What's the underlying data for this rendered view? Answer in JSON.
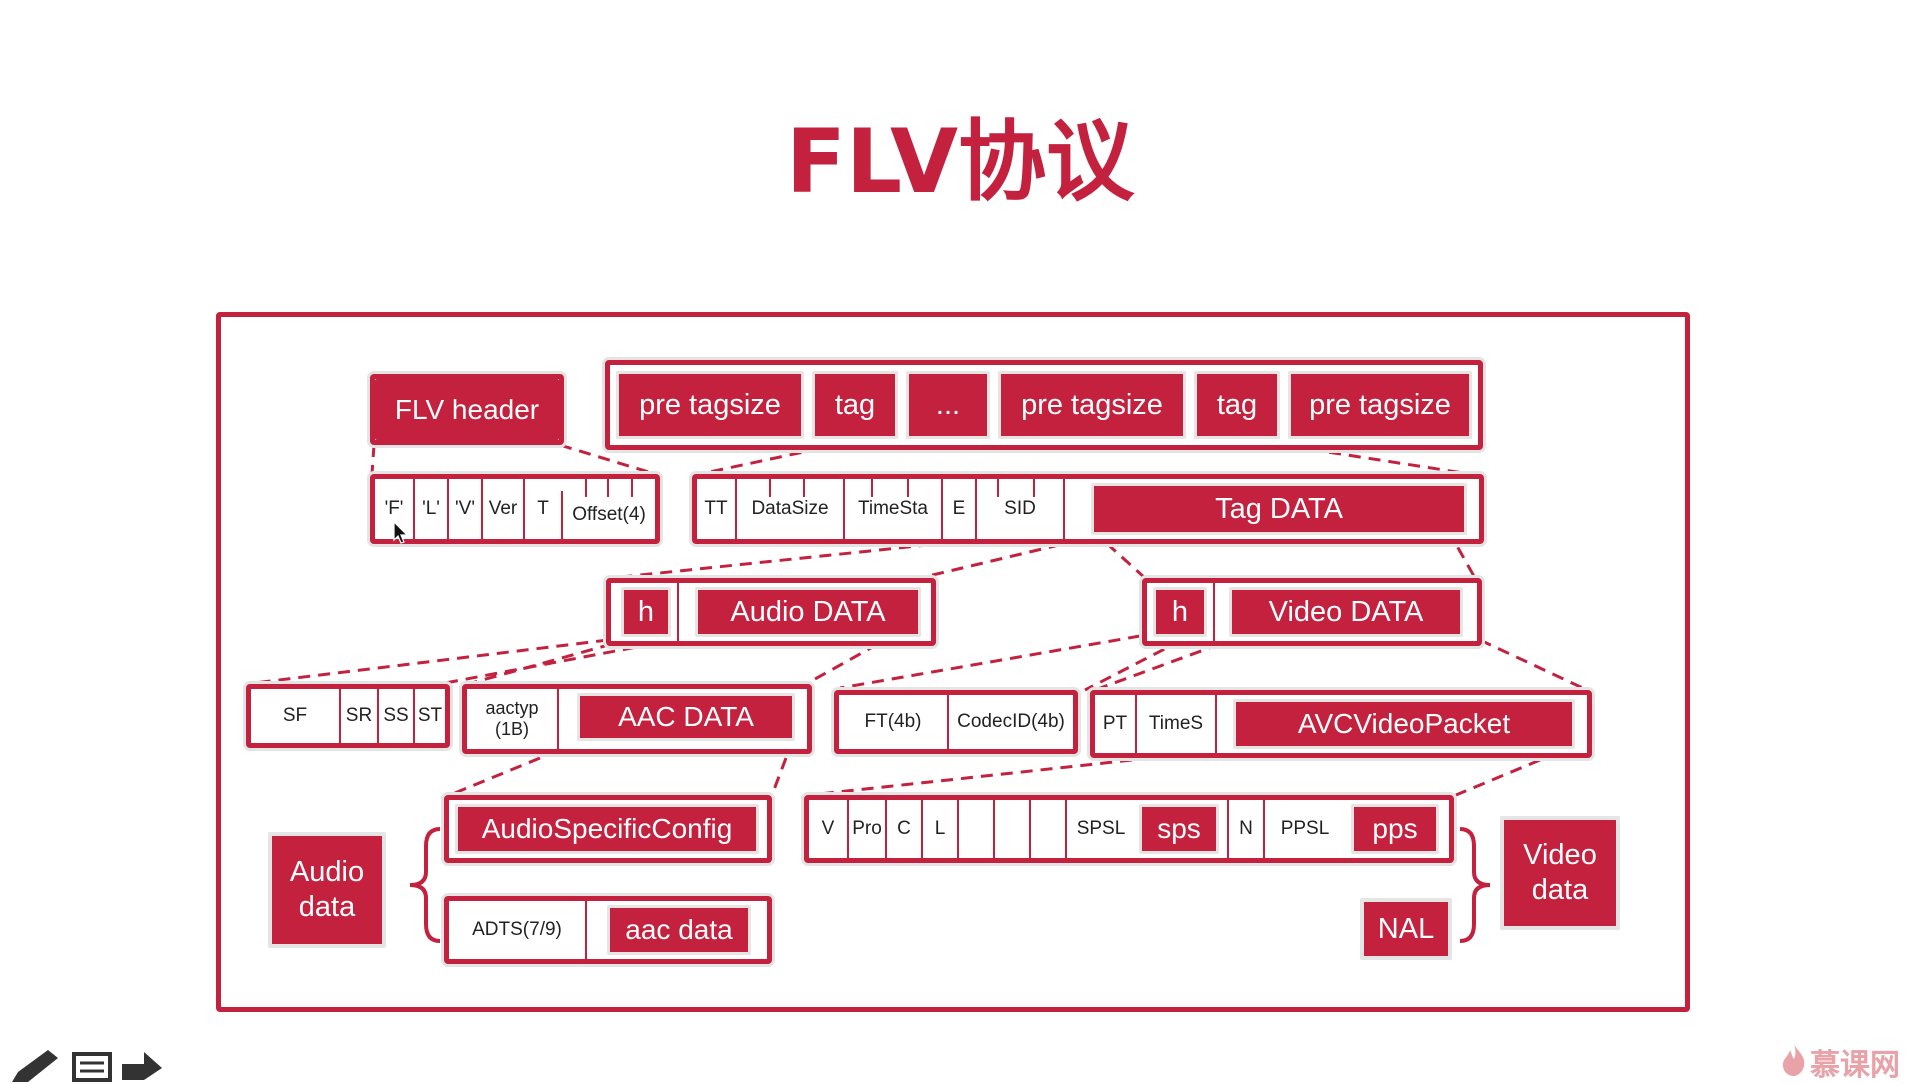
{
  "title": "FLV协议",
  "flv_header": {
    "label": "FLV header",
    "fields": [
      "'F'",
      "'L'",
      "'V'",
      "Ver",
      "T",
      "Offset(4)"
    ]
  },
  "stream": [
    "pre tagsize",
    "tag",
    "...",
    "pre tagsize",
    "tag",
    "pre tagsize"
  ],
  "tag": {
    "fields": [
      "TT",
      "DataSize",
      "TimeSta",
      "E",
      "SID"
    ],
    "data_label": "Tag DATA"
  },
  "audio": {
    "h": "h",
    "data_label": "Audio DATA",
    "fields": [
      "SF",
      "SR",
      "SS",
      "ST"
    ],
    "aac_type": "aactyp\n(1B)",
    "aac_data": "AAC DATA",
    "config": "AudioSpecificConfig",
    "adts": "ADTS(7/9)",
    "aac_raw": "aac data",
    "side_label": "Audio\ndata"
  },
  "video": {
    "h": "h",
    "data_label": "Video DATA",
    "fields": [
      "FT(4b)",
      "CodecID(4b)"
    ],
    "avc_fields": [
      "PT",
      "TimeS"
    ],
    "avc_packet": "AVCVideoPacket",
    "seq_fields": [
      "V",
      "Pro",
      "C",
      "L",
      "",
      "",
      "",
      "SPSL"
    ],
    "sps": "sps",
    "seq_fields2": [
      "N",
      "PPSL"
    ],
    "pps": "pps",
    "nal": "NAL",
    "side_label": "Video\ndata"
  },
  "colors": {
    "accent": "#c4213f",
    "text": "#222222",
    "shadow": "#e4e4e4"
  },
  "icons": [
    "pencil-icon",
    "list-icon",
    "forward-arrow-icon",
    "flame-logo-icon"
  ],
  "watermark": "慕课网"
}
